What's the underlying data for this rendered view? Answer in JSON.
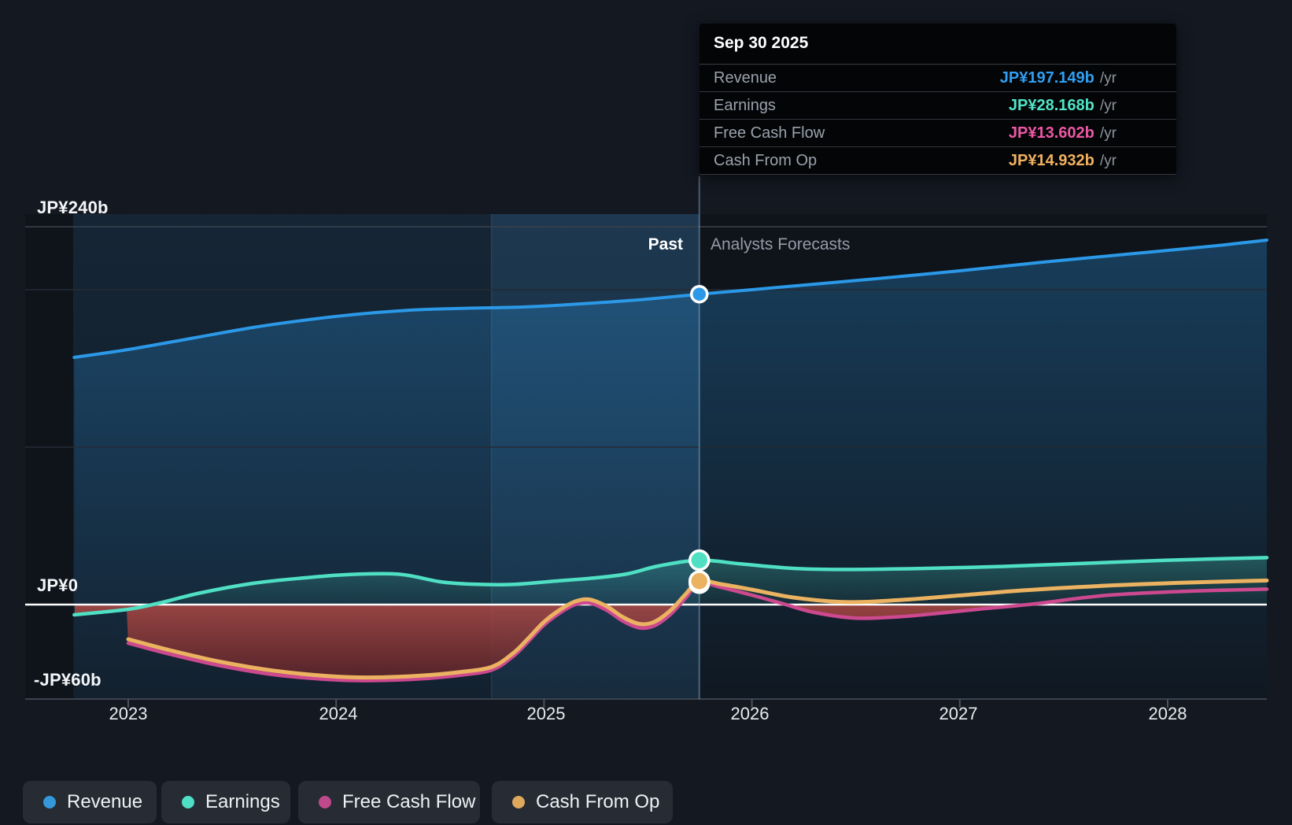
{
  "tooltip": {
    "date": "Sep 30 2025",
    "rows": [
      {
        "label": "Revenue",
        "value": "JP¥197.149b",
        "unit": "/yr",
        "color": "#2f9ff2"
      },
      {
        "label": "Earnings",
        "value": "JP¥28.168b",
        "unit": "/yr",
        "color": "#50e5c8"
      },
      {
        "label": "Free Cash Flow",
        "value": "JP¥13.602b",
        "unit": "/yr",
        "color": "#ec58a4"
      },
      {
        "label": "Cash From Op",
        "value": "JP¥14.932b",
        "unit": "/yr",
        "color": "#f2b25f"
      }
    ]
  },
  "period_labels": {
    "past": "Past",
    "forecast": "Analysts Forecasts"
  },
  "axis": {
    "y_labels": [
      {
        "label": "JP¥240b",
        "value": 240
      },
      {
        "label": "JP¥0",
        "value": 0
      },
      {
        "label": "-JP¥60b",
        "value": -60
      }
    ]
  },
  "legend": [
    {
      "label": "Revenue",
      "color": "#3598db"
    },
    {
      "label": "Earnings",
      "color": "#4fdec6"
    },
    {
      "label": "Free Cash Flow",
      "color": "#be4a8c"
    },
    {
      "label": "Cash From Op",
      "color": "#dfa85c"
    }
  ],
  "chart_data": {
    "type": "area",
    "x_ticks": [
      "2023",
      "2024",
      "2025",
      "2026",
      "2027",
      "2028"
    ],
    "xlim": [
      2022.735,
      2028.477
    ],
    "ylim": [
      -60,
      240
    ],
    "y_gridlines": [
      240,
      200,
      100,
      0
    ],
    "grid": true,
    "legend_position": "bottom",
    "divider": {
      "date": "Sep 30 2025",
      "x": 2025.747
    },
    "highlight_band": [
      2024.747,
      2025.747
    ],
    "negative_fill": {
      "top": "#b34a44",
      "bottom": "#571e24"
    },
    "series": [
      {
        "name": "Revenue",
        "color": "#2b99e8",
        "area": "bottom",
        "marker_value": 197.149,
        "points": [
          [
            2022.74,
            157
          ],
          [
            2023.0,
            162
          ],
          [
            2023.3,
            169
          ],
          [
            2023.6,
            176
          ],
          [
            2023.9,
            181.5
          ],
          [
            2024.15,
            185
          ],
          [
            2024.4,
            187.3
          ],
          [
            2024.65,
            188.3
          ],
          [
            2024.9,
            189
          ],
          [
            2025.15,
            190.8
          ],
          [
            2025.45,
            193.5
          ],
          [
            2025.747,
            197.149
          ],
          [
            2026.0,
            200
          ],
          [
            2026.3,
            203.5
          ],
          [
            2026.6,
            207
          ],
          [
            2027.0,
            212
          ],
          [
            2027.4,
            217.5
          ],
          [
            2027.8,
            222.5
          ],
          [
            2028.2,
            227.5
          ],
          [
            2028.477,
            231.5
          ]
        ]
      },
      {
        "name": "Earnings",
        "color": "#4fe0c4",
        "area": "zero",
        "marker_value": 28.168,
        "points": [
          [
            2022.74,
            -6.5
          ],
          [
            2023.0,
            -3
          ],
          [
            2023.15,
            1
          ],
          [
            2023.35,
            7.5
          ],
          [
            2023.6,
            13.5
          ],
          [
            2023.85,
            17
          ],
          [
            2024.05,
            19
          ],
          [
            2024.3,
            19.3
          ],
          [
            2024.5,
            14.5
          ],
          [
            2024.65,
            13
          ],
          [
            2024.85,
            12.8
          ],
          [
            2025.05,
            14.9
          ],
          [
            2025.25,
            17
          ],
          [
            2025.4,
            19.5
          ],
          [
            2025.55,
            24.5
          ],
          [
            2025.747,
            28.168
          ],
          [
            2025.95,
            25.8
          ],
          [
            2026.2,
            23
          ],
          [
            2026.45,
            22.3
          ],
          [
            2026.8,
            22.9
          ],
          [
            2027.2,
            24.2
          ],
          [
            2027.6,
            26.2
          ],
          [
            2028.0,
            28.2
          ],
          [
            2028.477,
            29.8
          ]
        ]
      },
      {
        "name": "Free Cash Flow",
        "color": "#cc4990",
        "area": "none",
        "marker_value": 13.602,
        "points": [
          [
            2023.0,
            -24.5
          ],
          [
            2023.2,
            -31.5
          ],
          [
            2023.45,
            -39
          ],
          [
            2023.7,
            -44.5
          ],
          [
            2023.95,
            -47.5
          ],
          [
            2024.15,
            -48.3
          ],
          [
            2024.4,
            -47.2
          ],
          [
            2024.6,
            -44.8
          ],
          [
            2024.75,
            -41.5
          ],
          [
            2024.85,
            -33
          ],
          [
            2024.92,
            -24
          ],
          [
            2025.0,
            -13
          ],
          [
            2025.08,
            -5
          ],
          [
            2025.15,
            0
          ],
          [
            2025.22,
            1
          ],
          [
            2025.3,
            -3.5
          ],
          [
            2025.38,
            -10.5
          ],
          [
            2025.46,
            -14.8
          ],
          [
            2025.53,
            -13.5
          ],
          [
            2025.61,
            -6
          ],
          [
            2025.68,
            4
          ],
          [
            2025.747,
            13.602
          ],
          [
            2025.85,
            11
          ],
          [
            2026.0,
            6
          ],
          [
            2026.15,
            0.5
          ],
          [
            2026.3,
            -5
          ],
          [
            2026.5,
            -8.6
          ],
          [
            2026.7,
            -7.8
          ],
          [
            2026.9,
            -5.5
          ],
          [
            2027.1,
            -2.8
          ],
          [
            2027.35,
            0.3
          ],
          [
            2027.7,
            5.8
          ],
          [
            2028.1,
            8.5
          ],
          [
            2028.477,
            9.8
          ]
        ]
      },
      {
        "name": "Cash From Op",
        "color": "#ebb261",
        "area": "none",
        "marker_value": 14.932,
        "points": [
          [
            2023.0,
            -22
          ],
          [
            2023.2,
            -29
          ],
          [
            2023.45,
            -36.5
          ],
          [
            2023.7,
            -42
          ],
          [
            2023.95,
            -45.3
          ],
          [
            2024.15,
            -46.3
          ],
          [
            2024.4,
            -45.2
          ],
          [
            2024.6,
            -42.8
          ],
          [
            2024.75,
            -39.5
          ],
          [
            2024.85,
            -31
          ],
          [
            2024.92,
            -22
          ],
          [
            2025.0,
            -11
          ],
          [
            2025.08,
            -3
          ],
          [
            2025.15,
            2
          ],
          [
            2025.22,
            3.2
          ],
          [
            2025.3,
            -1
          ],
          [
            2025.38,
            -8
          ],
          [
            2025.46,
            -12.3
          ],
          [
            2025.53,
            -11
          ],
          [
            2025.61,
            -3.5
          ],
          [
            2025.68,
            6.5
          ],
          [
            2025.747,
            14.932
          ],
          [
            2025.85,
            13
          ],
          [
            2026.0,
            9.5
          ],
          [
            2026.2,
            4.5
          ],
          [
            2026.45,
            1.6
          ],
          [
            2026.7,
            2.8
          ],
          [
            2027.0,
            5.8
          ],
          [
            2027.3,
            9
          ],
          [
            2027.7,
            12
          ],
          [
            2028.1,
            14
          ],
          [
            2028.477,
            15.3
          ]
        ]
      }
    ]
  }
}
